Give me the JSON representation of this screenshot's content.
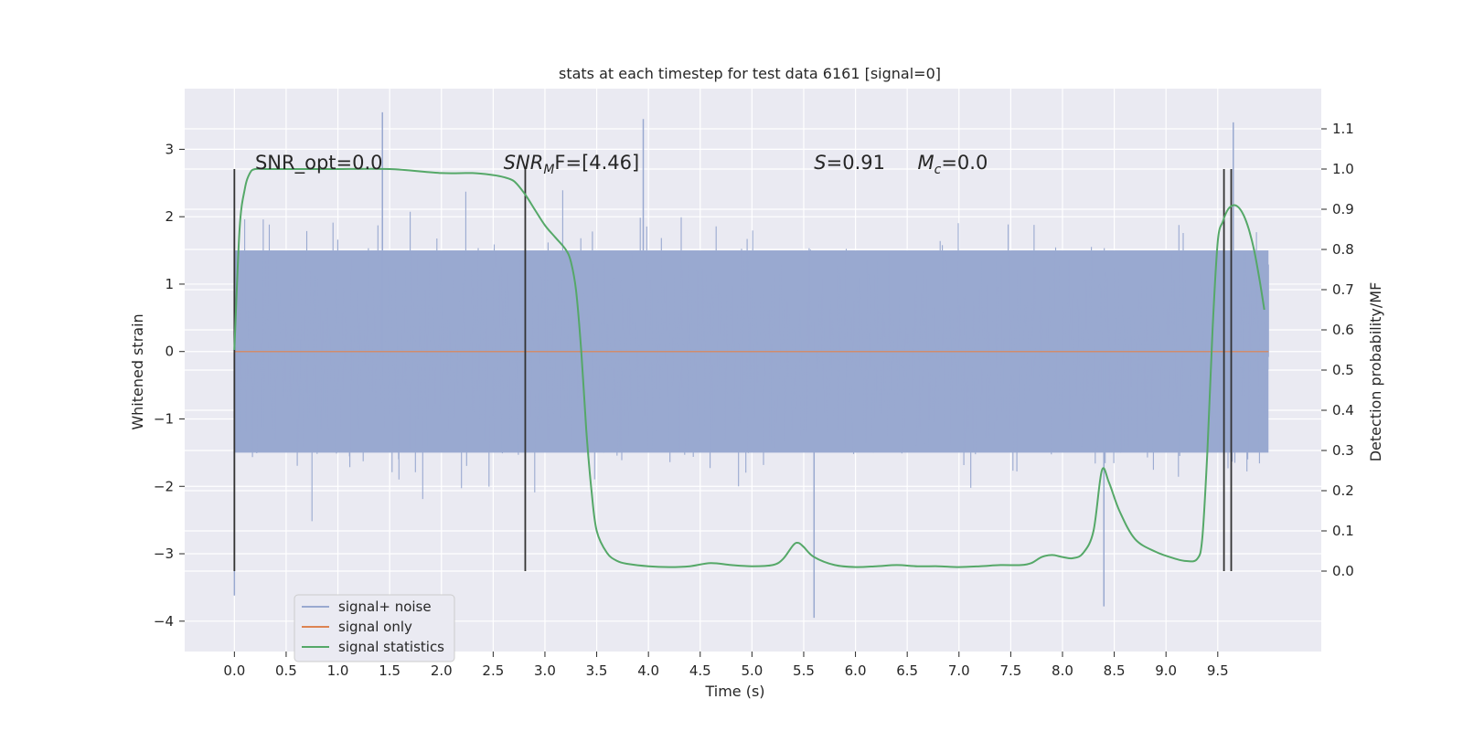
{
  "chart_data": {
    "type": "line",
    "title": "stats at each timestep for test data 6161 [signal=0]",
    "xlabel": "Time (s)",
    "ylabel_left": "Whitened strain",
    "ylabel_right": "Detection probability/MF",
    "xlim": [
      -0.48,
      10.5
    ],
    "ylim_left": [
      -4.45,
      3.9
    ],
    "ylim_right": [
      -0.2,
      1.2
    ],
    "x_ticks": [
      0.0,
      0.5,
      1.0,
      1.5,
      2.0,
      2.5,
      3.0,
      3.5,
      4.0,
      4.5,
      5.0,
      5.5,
      6.0,
      6.5,
      7.0,
      7.5,
      8.0,
      8.5,
      9.0,
      9.5
    ],
    "x_tick_labels": [
      "0.0",
      "0.5",
      "1.0",
      "1.5",
      "2.0",
      "2.5",
      "3.0",
      "3.5",
      "4.0",
      "4.5",
      "5.0",
      "5.5",
      "6.0",
      "6.5",
      "7.0",
      "7.5",
      "8.0",
      "8.5",
      "9.0",
      "9.5"
    ],
    "y_left_ticks": [
      3,
      2,
      1,
      0,
      -1,
      -2,
      -3,
      -4
    ],
    "y_left_tick_labels": [
      "3",
      "2",
      "1",
      "0",
      "−1",
      "−2",
      "−3",
      "−4"
    ],
    "y_right_ticks": [
      1.1,
      1.0,
      0.9,
      0.8,
      0.7,
      0.6,
      0.5,
      0.4,
      0.3,
      0.2,
      0.1,
      0.0
    ],
    "y_right_tick_labels": [
      "1.1",
      "1.0",
      "0.9",
      "0.8",
      "0.7",
      "0.6",
      "0.5",
      "0.4",
      "0.3",
      "0.2",
      "0.1",
      "0.0"
    ],
    "grid": true,
    "legend_position": "lower-left",
    "series": [
      {
        "name": "signal+ noise",
        "axis": "left",
        "color": "#99a9d0",
        "t_range": [
          0.0,
          9.99
        ],
        "band_core": [
          -1.5,
          1.5
        ],
        "peak_extremes": [
          [
            1.43,
            3.55
          ],
          [
            0.0,
            -3.62
          ],
          [
            5.6,
            -3.95
          ],
          [
            8.4,
            -3.78
          ],
          [
            9.65,
            3.4
          ],
          [
            3.95,
            3.45
          ]
        ]
      },
      {
        "name": "signal only",
        "axis": "left",
        "color": "#dd8452",
        "x": [
          0.0,
          9.99
        ],
        "y": [
          0.0,
          0.0
        ]
      },
      {
        "name": "signal statistics",
        "axis": "right",
        "color": "#55a868",
        "x": [
          0.0,
          0.05,
          0.1,
          0.15,
          0.2,
          0.3,
          0.5,
          1.0,
          1.5,
          2.0,
          2.3,
          2.5,
          2.6,
          2.7,
          2.8,
          2.9,
          3.0,
          3.1,
          3.2,
          3.25,
          3.3,
          3.35,
          3.4,
          3.45,
          3.5,
          3.6,
          3.7,
          3.8,
          4.0,
          4.2,
          4.4,
          4.6,
          4.8,
          5.0,
          5.2,
          5.3,
          5.4,
          5.45,
          5.5,
          5.6,
          5.8,
          6.0,
          6.2,
          6.4,
          6.6,
          6.8,
          7.0,
          7.2,
          7.4,
          7.6,
          7.7,
          7.8,
          7.9,
          8.0,
          8.1,
          8.2,
          8.3,
          8.38,
          8.45,
          8.55,
          8.7,
          8.9,
          9.1,
          9.2,
          9.3,
          9.35,
          9.4,
          9.45,
          9.5,
          9.55,
          9.6,
          9.65,
          9.7,
          9.75,
          9.8,
          9.85,
          9.9,
          9.95
        ],
        "y": [
          0.55,
          0.85,
          0.95,
          0.99,
          1.0,
          1.0,
          1.0,
          1.0,
          1.0,
          0.99,
          0.99,
          0.985,
          0.98,
          0.97,
          0.94,
          0.9,
          0.86,
          0.83,
          0.8,
          0.77,
          0.7,
          0.55,
          0.35,
          0.2,
          0.1,
          0.045,
          0.025,
          0.018,
          0.012,
          0.01,
          0.012,
          0.02,
          0.015,
          0.012,
          0.015,
          0.03,
          0.065,
          0.07,
          0.06,
          0.035,
          0.015,
          0.01,
          0.012,
          0.015,
          0.012,
          0.012,
          0.01,
          0.012,
          0.015,
          0.015,
          0.02,
          0.035,
          0.04,
          0.035,
          0.032,
          0.045,
          0.1,
          0.25,
          0.22,
          0.15,
          0.08,
          0.048,
          0.03,
          0.025,
          0.03,
          0.08,
          0.3,
          0.6,
          0.82,
          0.87,
          0.9,
          0.91,
          0.905,
          0.885,
          0.85,
          0.8,
          0.73,
          0.65
        ]
      }
    ],
    "vertical_lines": [
      {
        "x": 0.0,
        "y_right": [
          0.0,
          1.0
        ]
      },
      {
        "x": 2.81,
        "y_right": [
          0.0,
          1.0
        ]
      },
      {
        "x": 9.56,
        "y_right": [
          0.0,
          1.0
        ]
      },
      {
        "x": 9.63,
        "y_right": [
          0.0,
          1.0
        ]
      }
    ],
    "annotations": [
      {
        "kind": "plain",
        "text": "SNR_opt=0.0",
        "x": 0.2,
        "y_right": 1.0
      },
      {
        "kind": "sub",
        "base": "SNR",
        "sub": "M",
        "tail": "F=[4.46]",
        "x": 2.6,
        "y_right": 1.0
      },
      {
        "kind": "italic",
        "base": "S",
        "tail": "=0.91",
        "x": 5.6,
        "y_right": 1.0
      },
      {
        "kind": "sub",
        "base": "M",
        "sub": "c",
        "tail": "=0.0",
        "x": 6.6,
        "y_right": 1.0
      }
    ]
  },
  "colors": {
    "plot_background": "#eaeaf2",
    "grid": "#ffffff",
    "text": "#262626",
    "vline": "#333333"
  }
}
